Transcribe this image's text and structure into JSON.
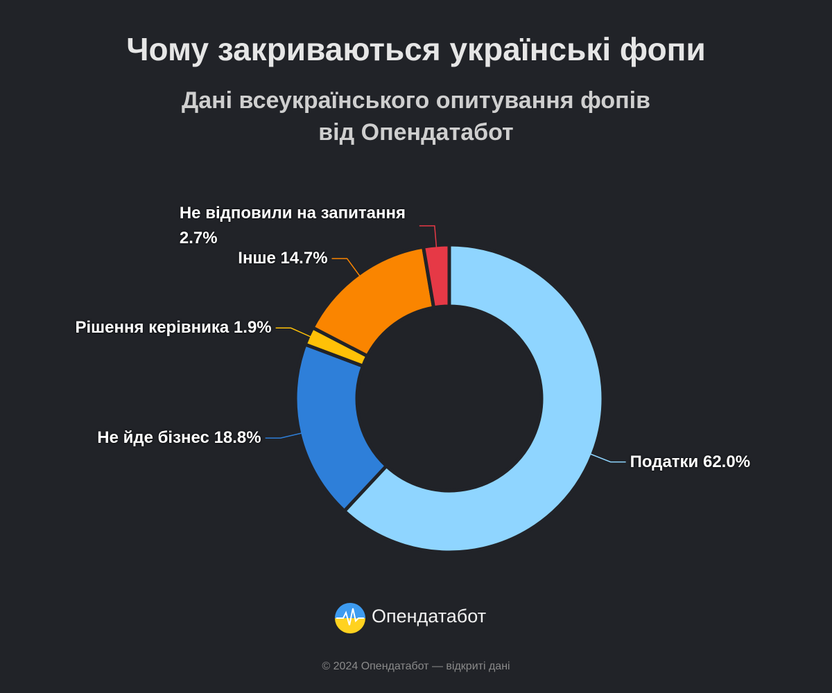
{
  "chart_data": {
    "type": "donut",
    "title": "Чому закриваються українські фопи",
    "subtitle": "Дані всеукраїнського опитування фопів від Опендатабот",
    "categories": [
      "Податки",
      "Не йде бізнес",
      "Рішення керівника",
      "Інше",
      "Не відповили на запитання"
    ],
    "values": [
      62.0,
      18.8,
      1.9,
      14.7,
      2.7
    ],
    "value_labels": [
      "62.0%",
      "18.8%",
      "1.9%",
      "14.7%",
      "2.7%"
    ],
    "colors": [
      "#8fd5ff",
      "#2e7fd9",
      "#ffc107",
      "#fa8500",
      "#e63946"
    ]
  },
  "branding": {
    "logo_text": "Опендатабот",
    "footer": "© 2024 Опендатабот — відкриті дані"
  }
}
